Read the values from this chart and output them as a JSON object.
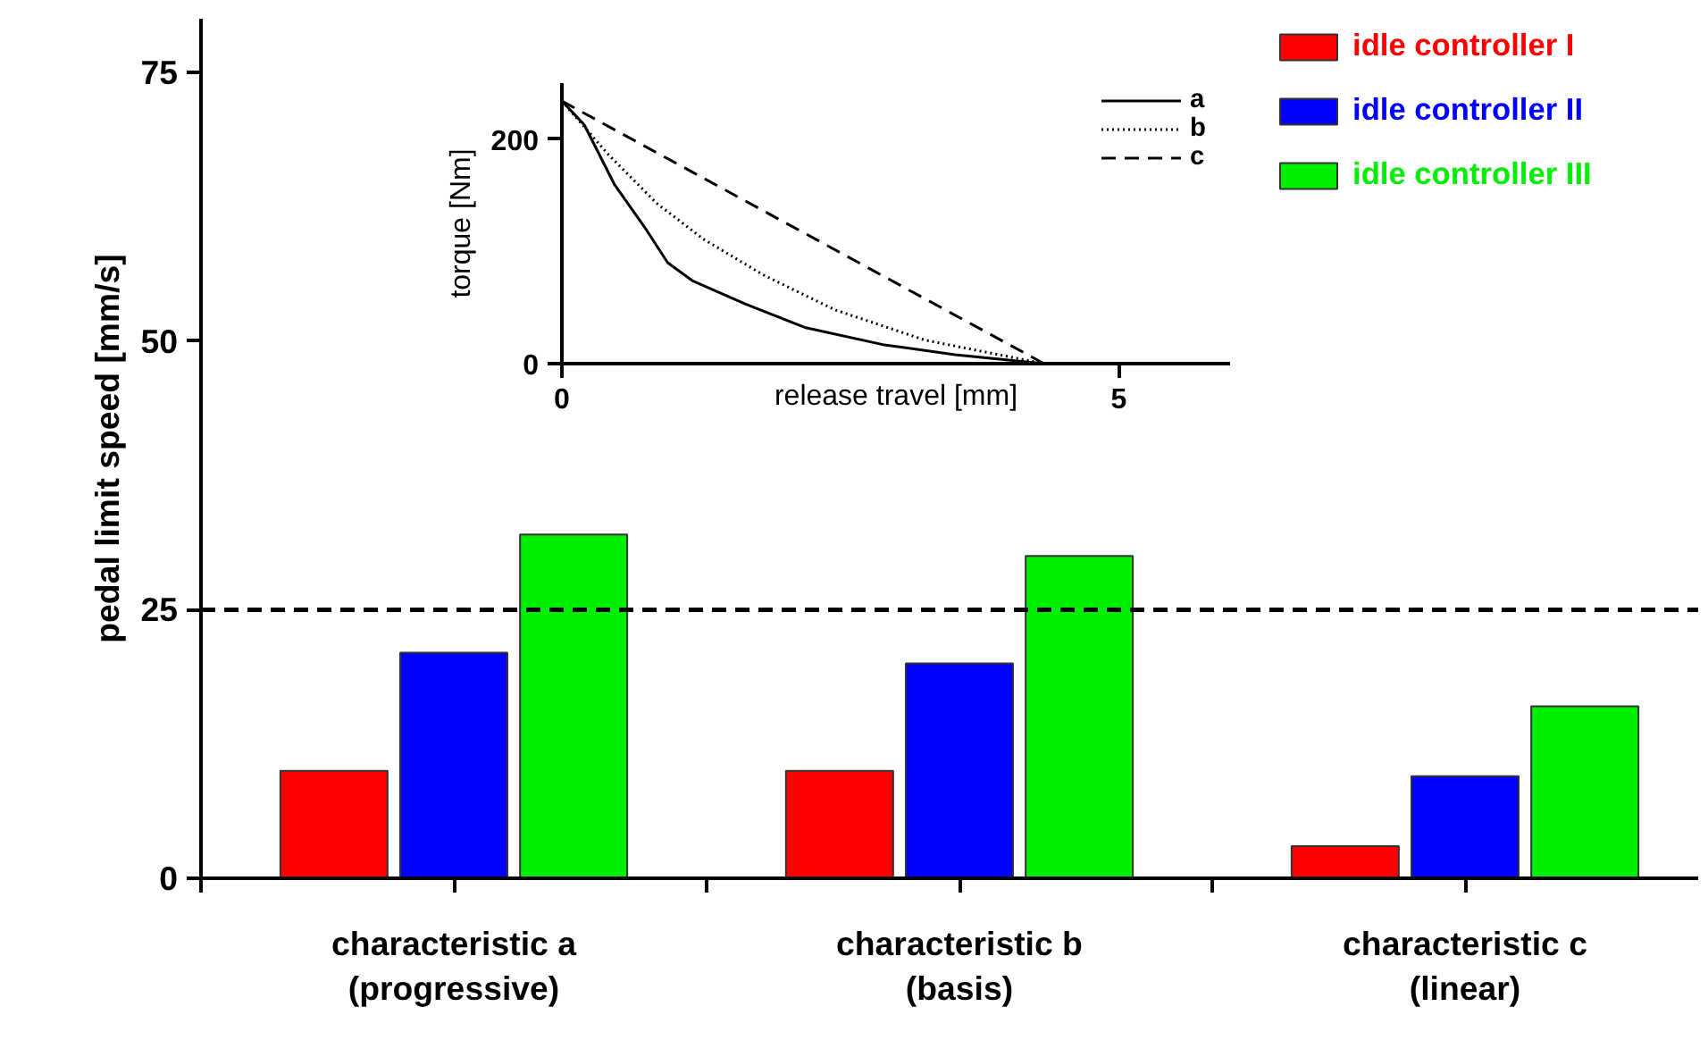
{
  "chart_data": [
    {
      "type": "bar",
      "ylabel": "pedal limit speed [mm/s]",
      "categories": [
        "characteristic a\n(progressive)",
        "characteristic b\n(basis)",
        "characteristic c\n(linear)"
      ],
      "series": [
        {
          "name": "idle controller I",
          "color": "#ff0000",
          "values": [
            10,
            10,
            3
          ]
        },
        {
          "name": "idle controller II",
          "color": "#0000ff",
          "values": [
            21,
            20,
            9.5
          ]
        },
        {
          "name": "idle controller III",
          "color": "#00ee00",
          "values": [
            32,
            30,
            16
          ]
        }
      ],
      "ylim": [
        0,
        80
      ],
      "yticks": [
        0,
        25,
        50,
        75
      ],
      "ref_lines": [
        {
          "axis": "y",
          "value": 25,
          "line_style": "dashed",
          "color": "#000000"
        }
      ],
      "legend": "top right",
      "grid": false
    },
    {
      "type": "line",
      "xlabel": "release travel [mm]",
      "ylabel": "torque [Nm]",
      "series": [
        {
          "name": "a",
          "color": "#000000",
          "line_style": "solid",
          "x": [
            0,
            0.2,
            0.47,
            0.74,
            0.95,
            1.17,
            1.65,
            2.19,
            2.88,
            3.53,
            4.33
          ],
          "values": [
            234,
            213,
            160,
            122,
            90,
            74,
            53,
            32,
            17,
            8,
            0
          ]
        },
        {
          "name": "b",
          "color": "#000000",
          "line_style": "dotted",
          "x": [
            0,
            0.42,
            0.85,
            1.27,
            1.81,
            2.45,
            3.26,
            4.33
          ],
          "values": [
            234,
            186,
            143,
            111,
            79,
            48,
            21,
            0
          ]
        },
        {
          "name": "c",
          "color": "#000000",
          "line_style": "dashed",
          "x": [
            0,
            4.33
          ],
          "values": [
            234,
            0
          ]
        }
      ],
      "xlim": [
        0,
        6
      ],
      "ylim": [
        0,
        250
      ],
      "xticks": [
        0,
        5
      ],
      "yticks": [
        0,
        200
      ],
      "legend": "top right",
      "grid": false
    }
  ]
}
